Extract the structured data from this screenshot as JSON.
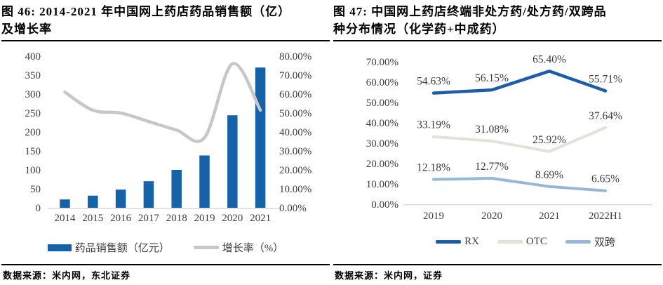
{
  "page": {
    "background": "#ffffff"
  },
  "left_panel": {
    "title_line1": "图 46: 2014-2021 年中国网上药店药品销售额（亿）",
    "title_line2": "及增长率",
    "source": "数据来源：米内网，东北证券"
  },
  "right_panel": {
    "title_line1": "图 47: 中国网上药店终端非处方药/处方药/双跨品",
    "title_line2": "种分布情况（化学药+中成药）",
    "source": "数据来源：米内网，证券"
  },
  "colors": {
    "bar_blue": "#1562a9",
    "growth_gray": "#c7c7c7",
    "rx_blue": "#1e5ca9",
    "otc_gray": "#e3e1d8",
    "dual_blue": "#96b6da",
    "axis_text": "#3d3d3d",
    "axis_line": "#d6d6d6"
  },
  "chart_data": [
    {
      "type": "bar",
      "subtype": "combo-bar-line",
      "title": "2014-2021 年中国网上药店药品销售额（亿）及增长率",
      "categories": [
        "2014",
        "2015",
        "2016",
        "2017",
        "2018",
        "2019",
        "2020",
        "2021"
      ],
      "series": [
        {
          "name": "药品销售额（亿元）",
          "type": "bar",
          "axis": "left",
          "color": "#1562a9",
          "values": [
            22,
            32,
            48,
            70,
            100,
            138,
            244,
            370
          ]
        },
        {
          "name": "增长率（%）",
          "type": "line",
          "axis": "right",
          "color": "#c7c7c7",
          "values": [
            61.0,
            51.5,
            50.0,
            45.5,
            41.0,
            37.0,
            76.0,
            51.5
          ]
        }
      ],
      "left_axis": {
        "min": 0,
        "max": 400,
        "step": 50,
        "tick_labels": [
          "0",
          "50",
          "100",
          "150",
          "200",
          "250",
          "300",
          "350",
          "400"
        ]
      },
      "right_axis": {
        "min": 0,
        "max": 80,
        "step": 10,
        "tick_labels": [
          "0.00%",
          "10.00%",
          "20.00%",
          "30.00%",
          "40.00%",
          "50.00%",
          "60.00%",
          "70.00%",
          "80.00%"
        ]
      },
      "grid": false,
      "legend_position": "bottom"
    },
    {
      "type": "line",
      "title": "中国网上药店终端非处方药/处方药/双跨品种分布情况（化学药+中成药）",
      "categories": [
        "2019",
        "2020",
        "2021",
        "2022H1"
      ],
      "series": [
        {
          "name": "RX",
          "color": "#1e5ca9",
          "values": [
            54.63,
            56.15,
            65.4,
            55.71
          ],
          "point_labels": [
            "54.63%",
            "56.15%",
            "65.40%",
            "55.71%"
          ]
        },
        {
          "name": "OTC",
          "color": "#e3e1d8",
          "values": [
            33.19,
            31.08,
            25.92,
            37.64
          ],
          "point_labels": [
            "33.19%",
            "31.08%",
            "25.92%",
            "37.64%"
          ]
        },
        {
          "name": "双跨",
          "color": "#96b6da",
          "values": [
            12.18,
            12.77,
            8.69,
            6.65
          ],
          "point_labels": [
            "12.18%",
            "12.77%",
            "8.69%",
            "6.65%"
          ]
        }
      ],
      "y_axis": {
        "min": 0,
        "max": 70,
        "step": 10,
        "tick_labels": [
          "0.00%",
          "10.00%",
          "20.00%",
          "30.00%",
          "40.00%",
          "50.00%",
          "60.00%",
          "70.00%"
        ]
      },
      "grid": false,
      "legend_position": "bottom"
    }
  ]
}
